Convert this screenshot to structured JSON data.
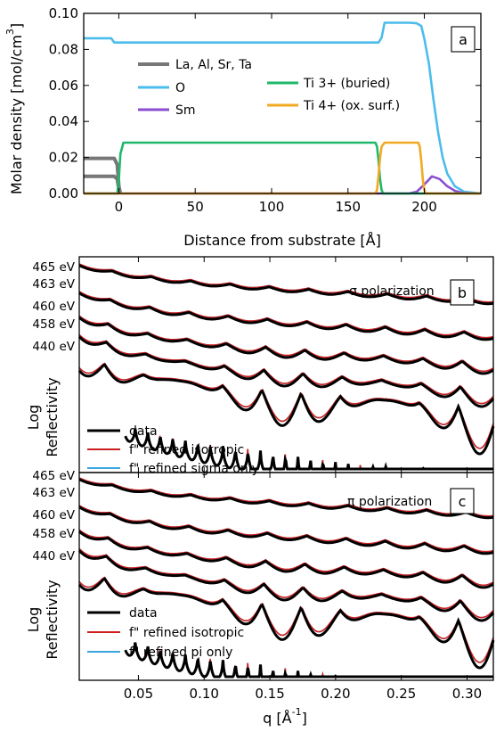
{
  "chart_data": [
    {
      "type": "line",
      "panel_label": "a",
      "xlabel": "Distance from substrate [Å]",
      "ylabel": "Molar density [mol/cm",
      "ylabel_superscript": "3",
      "xlim": [
        -23,
        237
      ],
      "ylim": [
        0,
        0.1
      ],
      "xticks": [
        0,
        50,
        100,
        150,
        200
      ],
      "xtick_labels": [
        "0",
        "50",
        "100",
        "150",
        "200"
      ],
      "yticks": [
        0,
        0.02,
        0.04,
        0.06,
        0.08,
        0.1
      ],
      "ytick_labels": [
        "0.00",
        "0.02",
        "0.04",
        "0.06",
        "0.08",
        "0.10"
      ],
      "legend": [
        {
          "name": "La, Al, Sr, Ta",
          "color": "#777777"
        },
        {
          "name": "O",
          "color": "#4cbcec"
        },
        {
          "name": "Sm",
          "color": "#8a4fd0"
        },
        {
          "name": "Ti 3+ (buried)",
          "color": "#1fb86b"
        },
        {
          "name": "Ti 4+ (ox. surf.)",
          "color": "#f2a922"
        }
      ],
      "series": [
        {
          "name": "La, Al, Sr, Ta",
          "color": "#777777",
          "x": [
            -23,
            -3,
            -1,
            0,
            1
          ],
          "y": [
            0.0195,
            0.0195,
            0.016,
            0.004,
            0
          ]
        },
        {
          "name": "La, Al, Sr, Ta",
          "color": "#777777",
          "x": [
            -23,
            -3,
            -1,
            0,
            1
          ],
          "y": [
            0.0095,
            0.0095,
            0.008,
            0.002,
            0
          ]
        },
        {
          "name": "O",
          "color": "#4cbcec",
          "x": [
            -23,
            -5,
            -3,
            170,
            172,
            174,
            190,
            195,
            198,
            200,
            203,
            206,
            209,
            212,
            215,
            220,
            226,
            237
          ],
          "y": [
            0.0862,
            0.0862,
            0.0838,
            0.0838,
            0.0865,
            0.0948,
            0.0948,
            0.0945,
            0.093,
            0.086,
            0.072,
            0.052,
            0.034,
            0.02,
            0.011,
            0.004,
            0.001,
            0
          ]
        },
        {
          "name": "Sm",
          "color": "#8a4fd0",
          "x": [
            -23,
            190,
            195,
            200,
            205,
            210,
            215,
            220,
            225,
            237
          ],
          "y": [
            0,
            0,
            0.001,
            0.005,
            0.0095,
            0.008,
            0.004,
            0.0015,
            0.0003,
            0
          ]
        },
        {
          "name": "Ti 3+ (buried)",
          "color": "#1fb86b",
          "x": [
            -23,
            -1,
            0,
            1,
            3,
            168,
            169,
            170,
            171,
            172,
            173,
            237
          ],
          "y": [
            0,
            0,
            0.008,
            0.022,
            0.0282,
            0.0282,
            0.026,
            0.018,
            0.008,
            0.002,
            0,
            0
          ]
        },
        {
          "name": "Ti 4+ (ox. surf.)",
          "color": "#f2a922",
          "x": [
            -23,
            168,
            169,
            170,
            171,
            172,
            174,
            196,
            197,
            198,
            199,
            200,
            201,
            237
          ],
          "y": [
            0,
            0,
            0.002,
            0.01,
            0.02,
            0.026,
            0.0282,
            0.0282,
            0.026,
            0.018,
            0.008,
            0.002,
            0,
            0
          ]
        }
      ]
    },
    {
      "type": "line",
      "panel_label": "b",
      "annotation": "σ polarization",
      "ylabel_line1": "Log",
      "ylabel_line2": "Reflectivity",
      "xlim": [
        0.005,
        0.32
      ],
      "energy_labels": [
        "465 eV",
        "463 eV",
        "460 eV",
        "458 eV",
        "440 eV"
      ],
      "legend": [
        {
          "name": "data",
          "color": "#000000"
        },
        {
          "name": "f\" refined isotropic",
          "color": "#cc2020"
        },
        {
          "name": "f\" refined sigma only",
          "color": "#3aa6e0"
        }
      ]
    },
    {
      "type": "line",
      "panel_label": "c",
      "annotation": "π polarization",
      "ylabel_line1": "Log",
      "ylabel_line2": "Reflectivity",
      "xlabel": "q [Å",
      "xlabel_superscript": "-1",
      "xlabel_close": "]",
      "xlim": [
        0.005,
        0.32
      ],
      "xticks": [
        0.05,
        0.1,
        0.15,
        0.2,
        0.25,
        0.3
      ],
      "xtick_labels": [
        "0.05",
        "0.10",
        "0.15",
        "0.20",
        "0.25",
        "0.30"
      ],
      "energy_labels": [
        "465 eV",
        "463 eV",
        "460 eV",
        "458 eV",
        "440 eV"
      ],
      "legend": [
        {
          "name": "data",
          "color": "#000000"
        },
        {
          "name": "f\" refined isotropic",
          "color": "#cc2020"
        },
        {
          "name": "f\" refined pi only",
          "color": "#3aa6e0"
        }
      ]
    }
  ]
}
